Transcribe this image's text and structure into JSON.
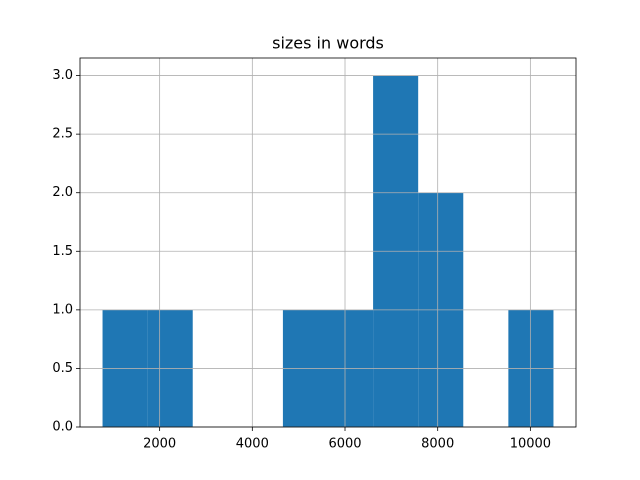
{
  "chart_data": {
    "type": "histogram",
    "title": "sizes in words",
    "bins": [
      768,
      1741,
      2714,
      3687,
      4660,
      5633,
      6606,
      7579,
      8552,
      9525,
      10498
    ],
    "counts": [
      1,
      1,
      0,
      0,
      1,
      1,
      3,
      2,
      0,
      1
    ],
    "color": "#1f77b4",
    "xlim": [
      281.5,
      10984.5
    ],
    "xticks": [
      2000,
      4000,
      6000,
      8000,
      10000
    ],
    "ylim": [
      0,
      3.15
    ],
    "yticks": [
      {
        "value": 0,
        "label": "0.0"
      },
      {
        "value": 0.5,
        "label": "0.5"
      },
      {
        "value": 1,
        "label": "1.0"
      },
      {
        "value": 1.5,
        "label": "1.5"
      },
      {
        "value": 2,
        "label": "2.0"
      },
      {
        "value": 2.5,
        "label": "2.5"
      },
      {
        "value": 3,
        "label": "3.0"
      }
    ],
    "grid": true
  }
}
